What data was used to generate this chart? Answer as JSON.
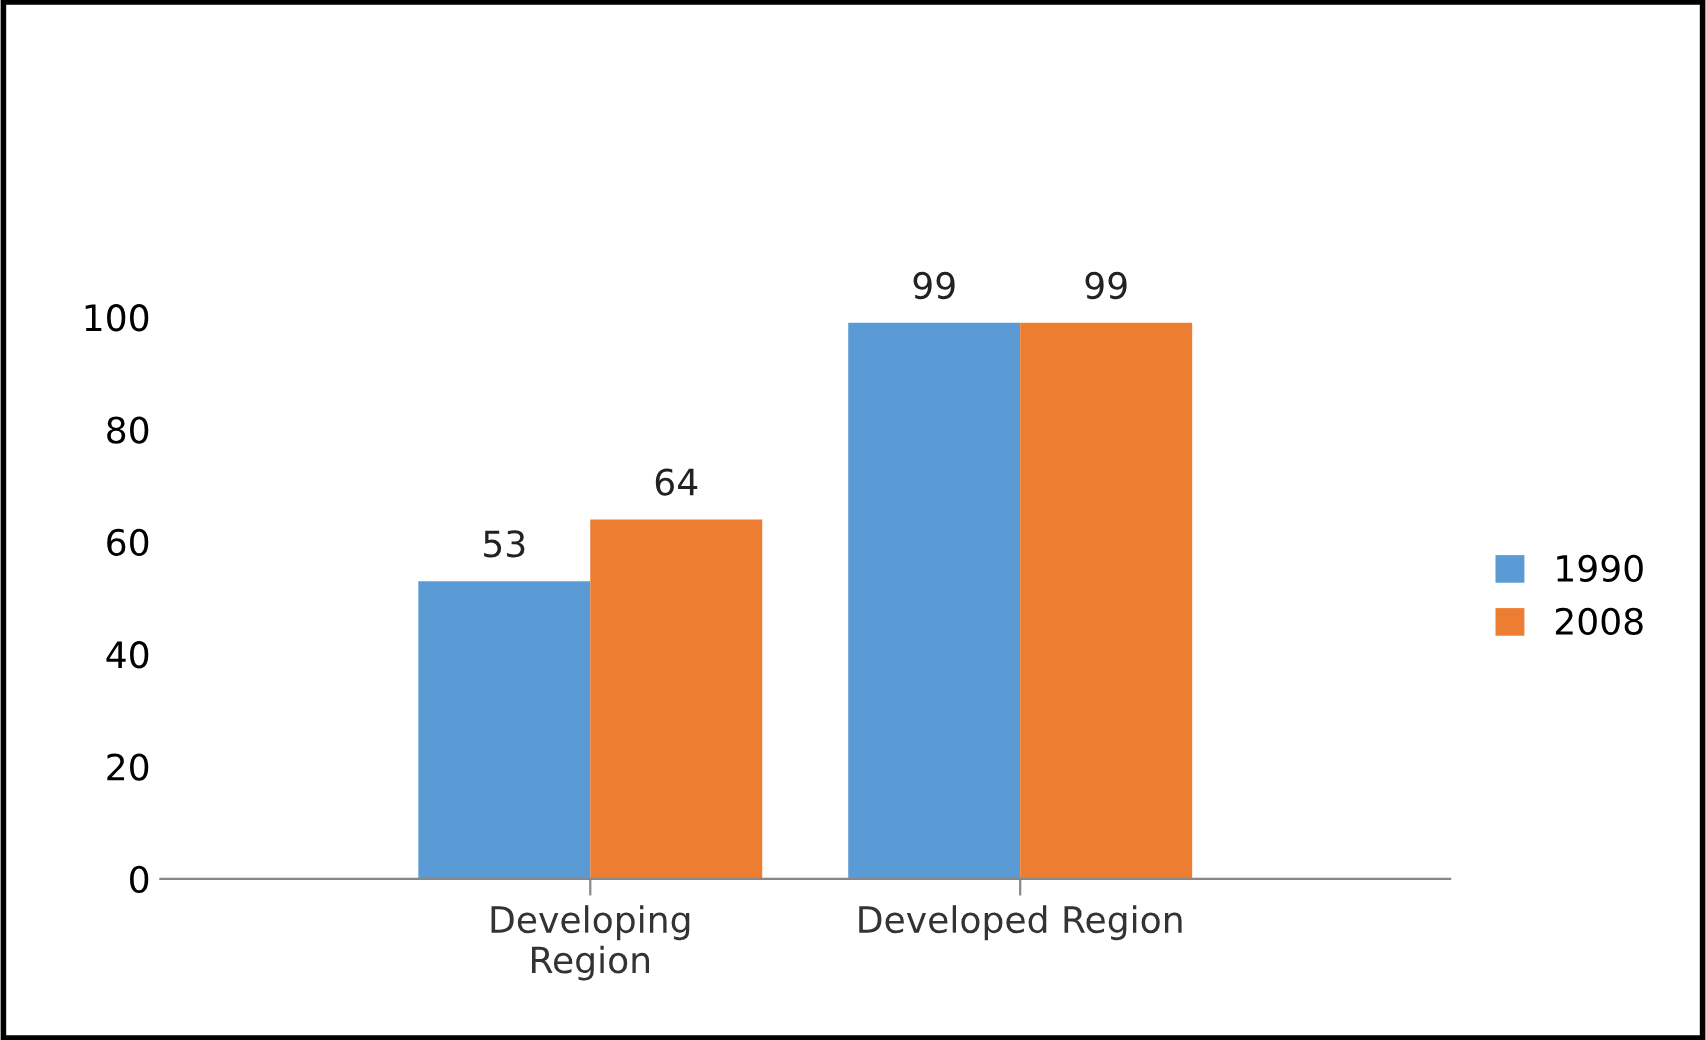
{
  "chart_data": {
    "type": "bar",
    "categories": [
      "Developing\nRegion",
      "Developed Region"
    ],
    "series": [
      {
        "name": "1990",
        "color": "#5b9bd5",
        "values": [
          53,
          99
        ]
      },
      {
        "name": "2008",
        "color": "#ed7d31",
        "values": [
          64,
          99
        ]
      }
    ],
    "ylim": [
      0,
      100
    ],
    "yticks": [
      0,
      20,
      40,
      60,
      80,
      100
    ],
    "grid": false,
    "legend": "right",
    "data_labels": true
  }
}
